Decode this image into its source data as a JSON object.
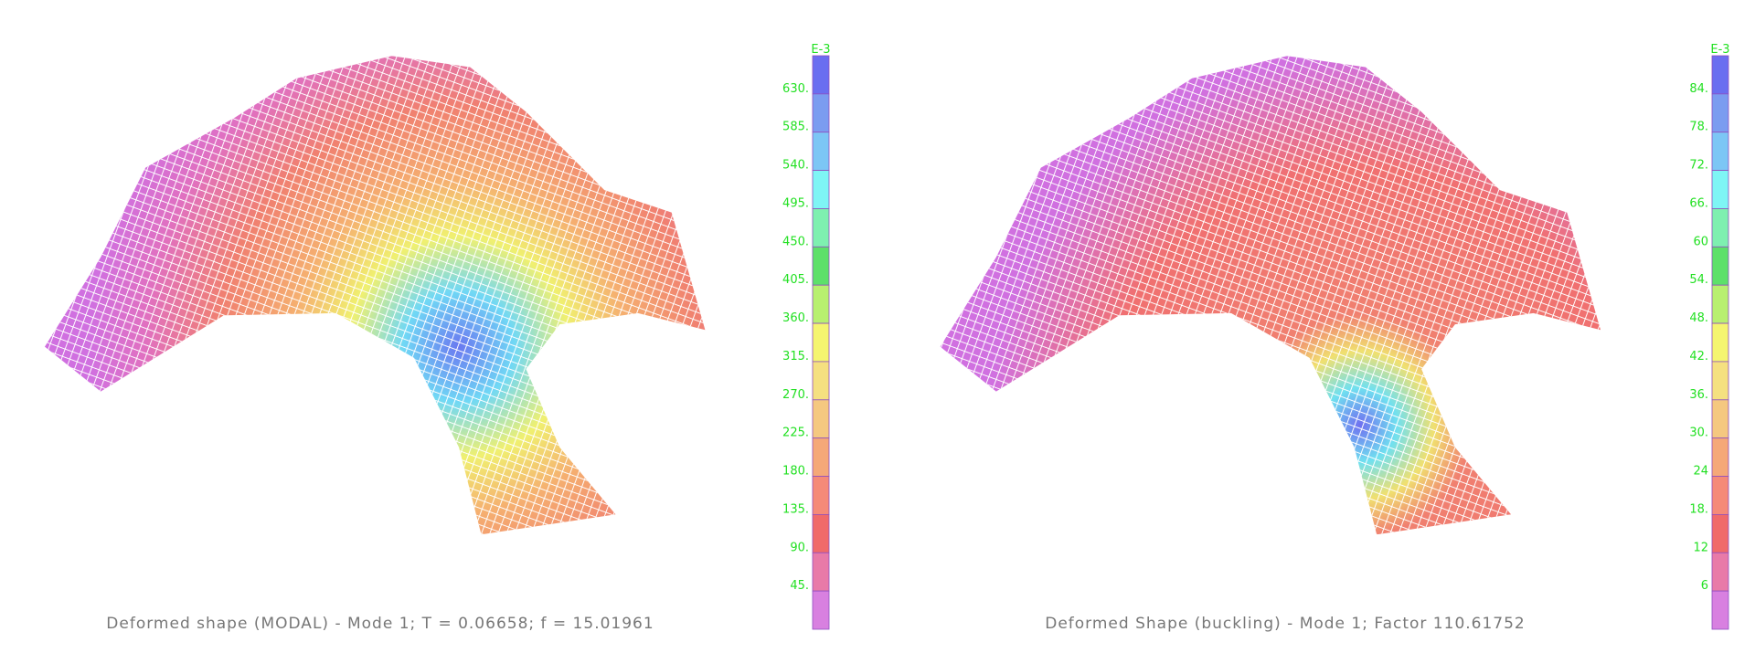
{
  "panels": [
    {
      "caption": "Deformed shape (MODAL) - Mode 1; T = 0.06658; f = 15.01961",
      "legend": {
        "exponent": "E-3",
        "labels": [
          "630.",
          "585.",
          "540.",
          "495.",
          "450.",
          "405.",
          "360.",
          "315.",
          "270.",
          "225.",
          "180.",
          "135.",
          "90.",
          "45."
        ]
      }
    },
    {
      "caption": "Deformed Shape (buckling) - Mode 1; Factor 110.61752",
      "legend": {
        "exponent": "E-3",
        "labels": [
          "84.",
          "78.",
          "72.",
          "66.",
          "60",
          "54.",
          "48.",
          "42.",
          "36.",
          "30.",
          "24",
          "18.",
          "12",
          "6"
        ]
      }
    }
  ]
}
